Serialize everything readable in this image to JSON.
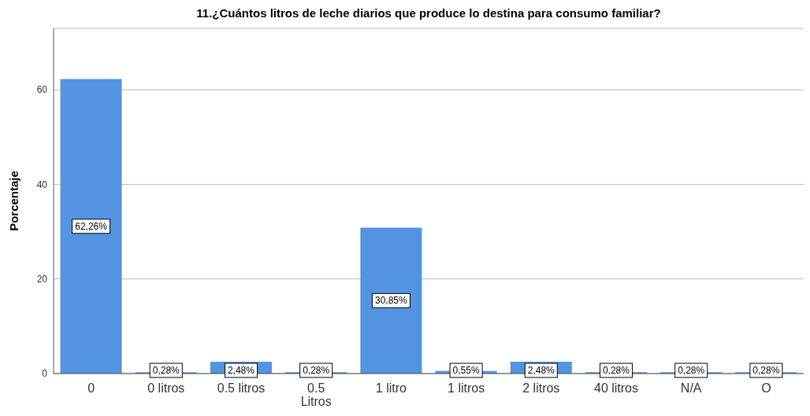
{
  "chart_data": {
    "type": "bar",
    "title": "11.¿Cuántos litros de leche diarios que produce lo destina para consumo familiar?",
    "ylabel": "Porcentaje",
    "categories": [
      "0",
      "0 litros",
      "0.5 litros",
      "0.5\nLitros",
      "1 litro",
      "1 litros",
      "2 litros",
      "40 litros",
      "N/A",
      "O"
    ],
    "values": [
      62.26,
      0.28,
      2.48,
      0.28,
      30.85,
      0.55,
      2.48,
      0.28,
      0.28,
      0.28
    ],
    "value_labels": [
      "62,26%",
      "0,28%",
      "2,48%",
      "0,28%",
      "30,85%",
      "0,55%",
      "2,48%",
      "0,28%",
      "0,28%",
      "0,28%"
    ],
    "color": "#5294e2",
    "ylim": [
      0,
      73
    ],
    "yticks": [
      0,
      20,
      40,
      60
    ],
    "grid": "y"
  }
}
